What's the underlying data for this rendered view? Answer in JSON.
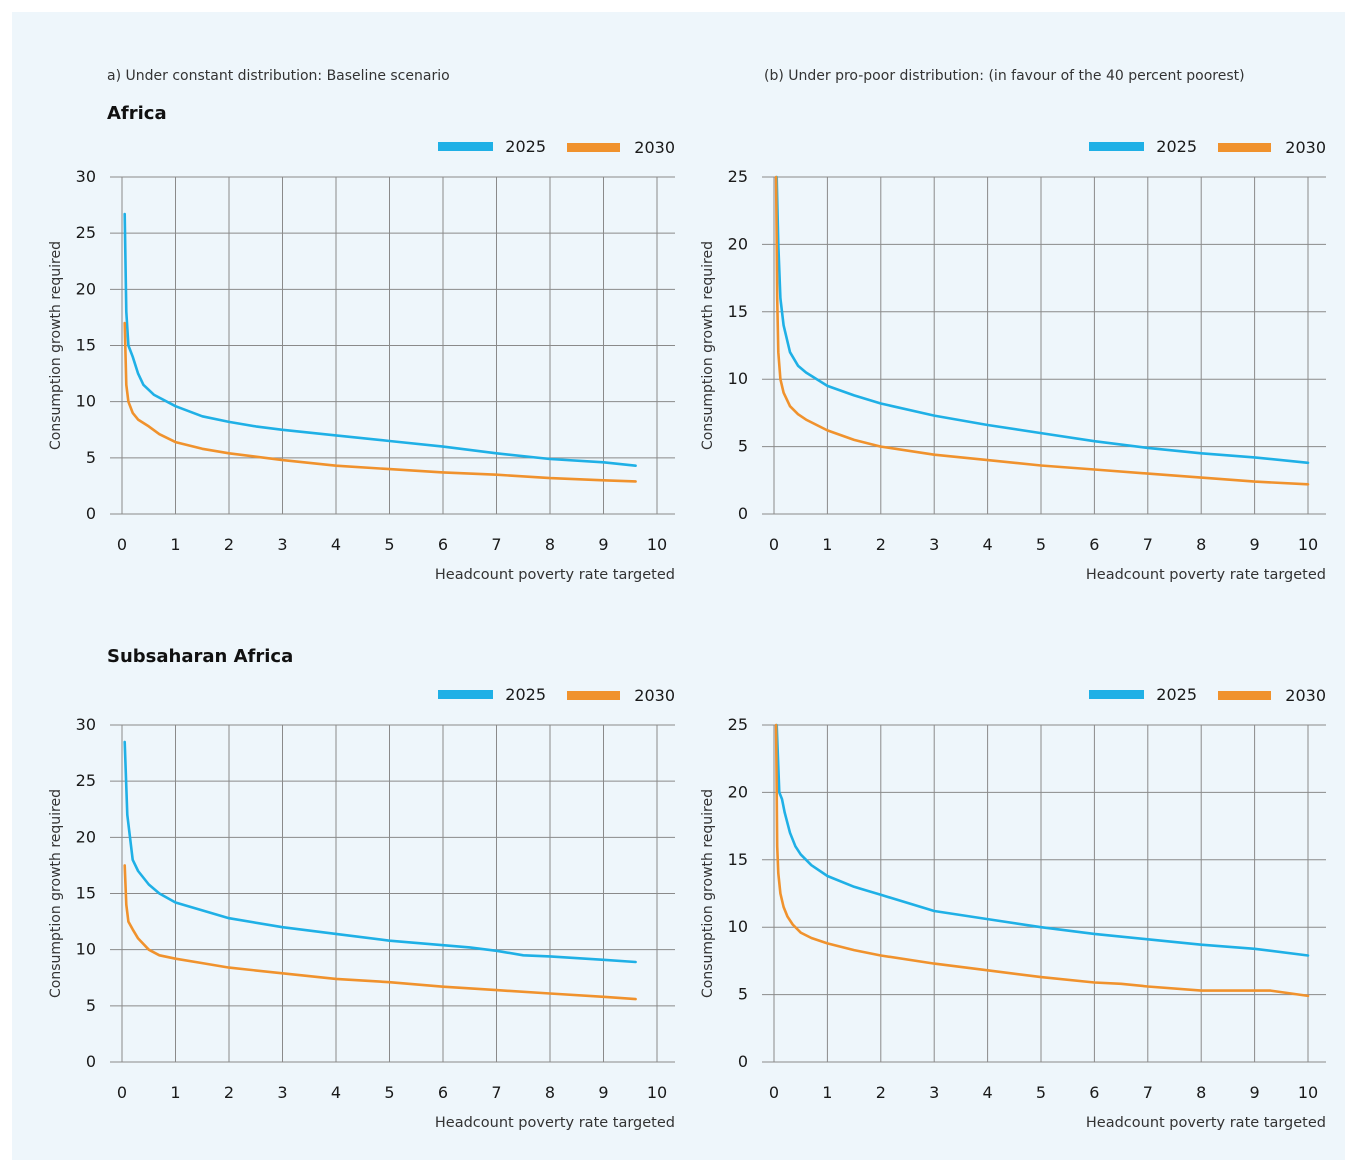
{
  "figure": {
    "subtitle_a": "a) Under constant distribution: Baseline scenario",
    "subtitle_b": "(b) Under pro-poor distribution: (in favour of the 40 percent poorest)",
    "region_1": "Africa",
    "region_2": "Subsaharan Africa"
  },
  "colors": {
    "series_2025": "#1fb0e6",
    "series_2030": "#f0922d",
    "grid": "#8a8a8a",
    "panel_bg": "#eef6fb"
  },
  "chart_data": [
    {
      "type": "line",
      "xlabel": "Headcount poverty rate targeted",
      "ylabel": "Consumption growth required",
      "xlim": [
        0,
        10
      ],
      "ylim": [
        0,
        30
      ],
      "xticks": [
        0,
        1,
        2,
        3,
        4,
        5,
        6,
        7,
        8,
        9,
        10
      ],
      "yticks": [
        0,
        5,
        10,
        15,
        20,
        25,
        30
      ],
      "grid": true,
      "legend": "top-right",
      "series": [
        {
          "name": "2025",
          "x": [
            0.05,
            0.08,
            0.12,
            0.2,
            0.3,
            0.4,
            0.6,
            1,
            1.5,
            2,
            2.5,
            3,
            4,
            5,
            6,
            7,
            8,
            9,
            9.6
          ],
          "y": [
            26.7,
            18,
            15,
            14,
            12.5,
            11.5,
            10.6,
            9.6,
            8.7,
            8.2,
            7.8,
            7.5,
            7.0,
            6.5,
            6.0,
            5.4,
            4.9,
            4.6,
            4.3
          ]
        },
        {
          "name": "2030",
          "x": [
            0.05,
            0.08,
            0.12,
            0.2,
            0.3,
            0.5,
            0.7,
            1,
            1.5,
            2,
            3,
            4,
            5,
            6,
            7,
            8,
            9,
            9.6
          ],
          "y": [
            17,
            11.5,
            10,
            9,
            8.4,
            7.8,
            7.1,
            6.4,
            5.8,
            5.4,
            4.8,
            4.3,
            4.0,
            3.7,
            3.5,
            3.2,
            3.0,
            2.9
          ]
        }
      ]
    },
    {
      "type": "line",
      "xlabel": "Headcount poverty rate targeted",
      "ylabel": "Consumption growth required",
      "xlim": [
        0,
        10
      ],
      "ylim": [
        0,
        25
      ],
      "xticks": [
        0,
        1,
        2,
        3,
        4,
        5,
        6,
        7,
        8,
        9,
        10
      ],
      "yticks": [
        0,
        5,
        10,
        15,
        20,
        25
      ],
      "grid": true,
      "legend": "top-right",
      "series": [
        {
          "name": "2025",
          "x": [
            0.05,
            0.08,
            0.12,
            0.18,
            0.3,
            0.45,
            0.6,
            1,
            1.5,
            2,
            3,
            4,
            5,
            6,
            7,
            8,
            9,
            10
          ],
          "y": [
            25,
            20,
            16,
            14,
            12,
            11,
            10.5,
            9.5,
            8.8,
            8.2,
            7.3,
            6.6,
            6.0,
            5.4,
            4.9,
            4.5,
            4.2,
            3.8
          ]
        },
        {
          "name": "2030",
          "x": [
            0.04,
            0.06,
            0.08,
            0.12,
            0.18,
            0.3,
            0.45,
            0.6,
            1,
            1.5,
            2,
            3,
            4,
            5,
            6,
            7,
            8,
            9,
            10
          ],
          "y": [
            25,
            16,
            12,
            10,
            9,
            8,
            7.4,
            7,
            6.2,
            5.5,
            5.0,
            4.4,
            4.0,
            3.6,
            3.3,
            3.0,
            2.7,
            2.4,
            2.2
          ]
        }
      ]
    },
    {
      "type": "line",
      "xlabel": "Headcount poverty rate targeted",
      "ylabel": "Consumption growth required",
      "xlim": [
        0,
        10
      ],
      "ylim": [
        0,
        30
      ],
      "xticks": [
        0,
        1,
        2,
        3,
        4,
        5,
        6,
        7,
        8,
        9,
        10
      ],
      "yticks": [
        0,
        5,
        10,
        15,
        20,
        25,
        30
      ],
      "grid": true,
      "legend": "top-right",
      "series": [
        {
          "name": "2025",
          "x": [
            0.05,
            0.1,
            0.15,
            0.2,
            0.3,
            0.5,
            0.7,
            1,
            1.5,
            2,
            3,
            4,
            5,
            6,
            6.5,
            7,
            7.5,
            8,
            9,
            9.6
          ],
          "y": [
            28.5,
            22,
            20,
            18,
            17,
            15.8,
            15,
            14.2,
            13.5,
            12.8,
            12.0,
            11.4,
            10.8,
            10.4,
            10.2,
            9.9,
            9.5,
            9.4,
            9.1,
            8.9
          ]
        },
        {
          "name": "2030",
          "x": [
            0.05,
            0.08,
            0.12,
            0.2,
            0.3,
            0.5,
            0.7,
            1,
            1.5,
            2,
            3,
            4,
            5,
            6,
            7,
            8,
            9,
            9.6
          ],
          "y": [
            17.5,
            14,
            12.5,
            11.8,
            11,
            10,
            9.5,
            9.2,
            8.8,
            8.4,
            7.9,
            7.4,
            7.1,
            6.7,
            6.4,
            6.1,
            5.8,
            5.6
          ]
        }
      ]
    },
    {
      "type": "line",
      "xlabel": "Headcount poverty rate targeted",
      "ylabel": "Consumption growth required",
      "xlim": [
        0,
        10
      ],
      "ylim": [
        0,
        25
      ],
      "xticks": [
        0,
        1,
        2,
        3,
        4,
        5,
        6,
        7,
        8,
        9,
        10
      ],
      "yticks": [
        0,
        5,
        10,
        15,
        20,
        25
      ],
      "grid": true,
      "legend": "top-right",
      "series": [
        {
          "name": "2025",
          "x": [
            0.05,
            0.1,
            0.15,
            0.2,
            0.3,
            0.4,
            0.5,
            0.7,
            1,
            1.5,
            2,
            3,
            4,
            5,
            6,
            7,
            8,
            9,
            10
          ],
          "y": [
            25,
            20,
            19.5,
            18.5,
            17,
            16,
            15.4,
            14.6,
            13.8,
            13,
            12.4,
            11.2,
            10.6,
            10.0,
            9.5,
            9.1,
            8.7,
            8.4,
            7.9
          ]
        },
        {
          "name": "2030",
          "x": [
            0.04,
            0.06,
            0.08,
            0.12,
            0.18,
            0.25,
            0.35,
            0.5,
            0.7,
            1,
            1.5,
            2,
            3,
            4,
            5,
            6,
            6.5,
            7,
            8,
            9,
            9.3,
            10
          ],
          "y": [
            25,
            16,
            14,
            12.5,
            11.5,
            10.8,
            10.2,
            9.6,
            9.2,
            8.8,
            8.3,
            7.9,
            7.3,
            6.8,
            6.3,
            5.9,
            5.8,
            5.6,
            5.3,
            5.3,
            5.3,
            4.9
          ]
        }
      ]
    }
  ]
}
